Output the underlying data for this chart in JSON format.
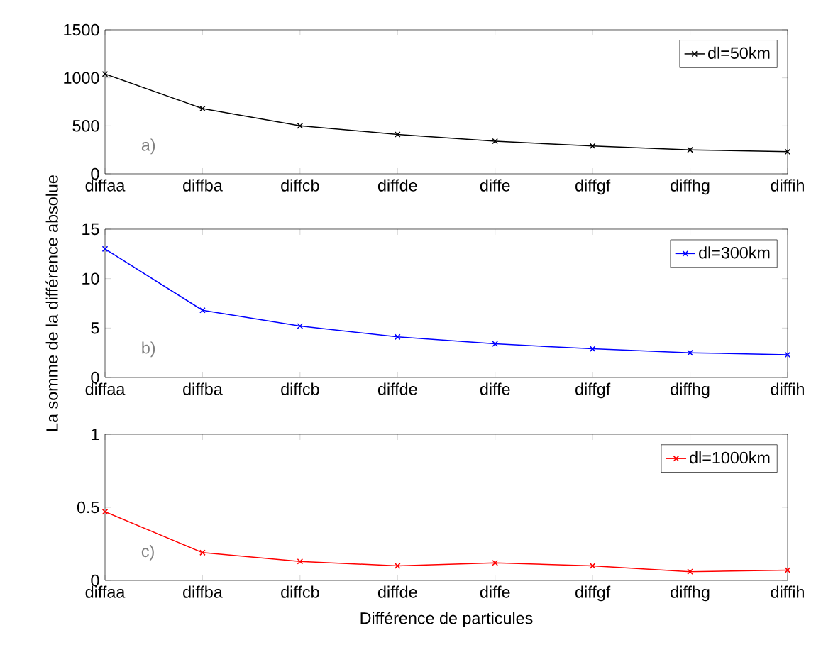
{
  "chart_data": [
    {
      "type": "line",
      "categories": [
        "diffaa",
        "diffba",
        "diffcb",
        "diffde",
        "diffe",
        "diffgf",
        "diffhg",
        "diffih"
      ],
      "ylim": [
        0,
        1500
      ],
      "yticks": [
        0,
        500,
        1000,
        1500
      ],
      "legend": "top right",
      "marker": "cross",
      "line_style": "solid",
      "annotations": [
        "a)"
      ],
      "series": [
        {
          "name": "dl=50km",
          "color": "#000000",
          "values": [
            1040,
            680,
            500,
            410,
            340,
            290,
            250,
            230
          ]
        }
      ]
    },
    {
      "type": "line",
      "categories": [
        "diffaa",
        "diffba",
        "diffcb",
        "diffde",
        "diffe",
        "diffgf",
        "diffhg",
        "diffih"
      ],
      "ylim": [
        0,
        15
      ],
      "yticks": [
        0,
        5,
        10,
        15
      ],
      "legend": "top right",
      "marker": "cross",
      "line_style": "solid",
      "annotations": [
        "b)"
      ],
      "ylabel": "La somme de la différence absolue",
      "series": [
        {
          "name": "dl=300km",
          "color": "#0000ff",
          "values": [
            13,
            6.8,
            5.2,
            4.1,
            3.4,
            2.9,
            2.5,
            2.3
          ]
        }
      ]
    },
    {
      "type": "line",
      "categories": [
        "diffaa",
        "diffba",
        "diffcb",
        "diffde",
        "diffe",
        "diffgf",
        "diffhg",
        "diffih"
      ],
      "ylim": [
        0,
        1
      ],
      "yticks": [
        0,
        0.5,
        1
      ],
      "legend": "top right",
      "marker": "cross",
      "line_style": "solid",
      "annotations": [
        "c)"
      ],
      "xlabel": "Différence de particules",
      "series": [
        {
          "name": "dl=1000km",
          "color": "#ff0000",
          "values": [
            0.47,
            0.19,
            0.13,
            0.1,
            0.12,
            0.1,
            0.06,
            0.07
          ]
        }
      ]
    }
  ]
}
